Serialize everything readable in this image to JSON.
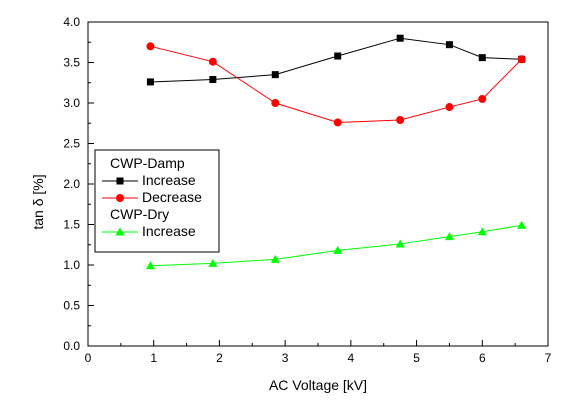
{
  "chart_data": {
    "type": "line",
    "xlabel": "AC Voltage [kV]",
    "ylabel": "tan δ [%]",
    "xlim": [
      0,
      7
    ],
    "ylim": [
      0.0,
      4.0
    ],
    "xticks": [
      "0",
      "1",
      "2",
      "3",
      "4",
      "5",
      "6",
      "7"
    ],
    "yticks": [
      "0.0",
      "0.5",
      "1.0",
      "1.5",
      "2.0",
      "2.5",
      "3.0",
      "3.5",
      "4.0"
    ],
    "grid": false,
    "legend_position": "left-middle",
    "legend_groups": [
      {
        "title": "CWP-Damp",
        "series": [
          0,
          1
        ]
      },
      {
        "title": "CWP-Dry",
        "series": [
          2
        ]
      }
    ],
    "series": [
      {
        "name": "Increase",
        "color": "#000000",
        "marker": "square",
        "x": [
          0.95,
          1.9,
          2.85,
          3.8,
          4.75,
          5.5,
          6.0,
          6.6
        ],
        "y": [
          3.26,
          3.29,
          3.35,
          3.58,
          3.8,
          3.72,
          3.56,
          3.54
        ]
      },
      {
        "name": "Decrease",
        "color": "#ff0000",
        "marker": "circle",
        "x": [
          0.95,
          1.9,
          2.85,
          3.8,
          4.75,
          5.5,
          6.0,
          6.6
        ],
        "y": [
          3.7,
          3.51,
          3.0,
          2.76,
          2.79,
          2.95,
          3.05,
          3.54
        ]
      },
      {
        "name": "Increase",
        "color": "#00ff00",
        "marker": "triangle",
        "x": [
          0.95,
          1.9,
          2.85,
          3.8,
          4.75,
          5.5,
          6.0,
          6.6
        ],
        "y": [
          0.99,
          1.02,
          1.07,
          1.18,
          1.26,
          1.35,
          1.41,
          1.49
        ]
      }
    ]
  }
}
